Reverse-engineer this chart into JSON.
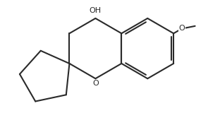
{
  "bg_color": "#ffffff",
  "line_color": "#2a2a2a",
  "line_width": 1.5,
  "font_size": 8,
  "oh_label": "OH",
  "o_label": "O",
  "ethoxy_o_label": "O"
}
